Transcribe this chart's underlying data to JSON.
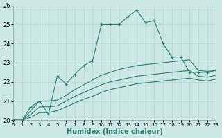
{
  "xlabel": "Humidex (Indice chaleur)",
  "background_color": "#cbe8e4",
  "grid_color": "#b0d8d0",
  "line_color": "#2d7a6e",
  "xlim": [
    0,
    23
  ],
  "ylim": [
    20,
    26
  ],
  "yticks": [
    20,
    21,
    22,
    23,
    24,
    25,
    26
  ],
  "xticks": [
    0,
    1,
    2,
    3,
    4,
    5,
    6,
    7,
    8,
    9,
    10,
    11,
    12,
    13,
    14,
    15,
    16,
    17,
    18,
    19,
    20,
    21,
    22,
    23
  ],
  "series_main": {
    "x": [
      0,
      1,
      2,
      3,
      4,
      5,
      6,
      7,
      8,
      9,
      10,
      11,
      12,
      13,
      14,
      15,
      16,
      17,
      18,
      19,
      20,
      21,
      22,
      23
    ],
    "y": [
      20.0,
      20.0,
      20.7,
      21.0,
      20.3,
      22.3,
      21.9,
      22.4,
      22.85,
      23.1,
      25.0,
      25.0,
      25.0,
      25.4,
      25.75,
      25.1,
      25.2,
      24.0,
      23.3,
      23.3,
      22.5,
      22.5,
      22.5,
      22.6
    ]
  },
  "series_smooth": [
    {
      "x": [
        0,
        1,
        2,
        3,
        4,
        5,
        6,
        7,
        8,
        9,
        10,
        11,
        12,
        13,
        14,
        15,
        16,
        17,
        18,
        19,
        20,
        21,
        22,
        23
      ],
      "y": [
        20.0,
        20.0,
        20.5,
        21.0,
        21.0,
        21.05,
        21.3,
        21.6,
        21.85,
        22.1,
        22.35,
        22.5,
        22.65,
        22.75,
        22.85,
        22.9,
        22.95,
        23.0,
        23.05,
        23.1,
        23.15,
        22.6,
        22.55,
        22.6
      ]
    },
    {
      "x": [
        0,
        1,
        2,
        3,
        4,
        5,
        6,
        7,
        8,
        9,
        10,
        11,
        12,
        13,
        14,
        15,
        16,
        17,
        18,
        19,
        20,
        21,
        22,
        23
      ],
      "y": [
        20.0,
        20.0,
        20.3,
        20.7,
        20.7,
        20.75,
        21.0,
        21.25,
        21.45,
        21.65,
        21.85,
        22.0,
        22.1,
        22.2,
        22.3,
        22.35,
        22.4,
        22.45,
        22.5,
        22.55,
        22.6,
        22.3,
        22.25,
        22.35
      ]
    },
    {
      "x": [
        0,
        1,
        2,
        3,
        4,
        5,
        6,
        7,
        8,
        9,
        10,
        11,
        12,
        13,
        14,
        15,
        16,
        17,
        18,
        19,
        20,
        21,
        22,
        23
      ],
      "y": [
        20.0,
        20.0,
        20.15,
        20.4,
        20.4,
        20.5,
        20.7,
        20.9,
        21.1,
        21.25,
        21.45,
        21.6,
        21.7,
        21.8,
        21.9,
        21.95,
        22.0,
        22.05,
        22.1,
        22.15,
        22.2,
        22.1,
        22.05,
        22.15
      ]
    }
  ]
}
